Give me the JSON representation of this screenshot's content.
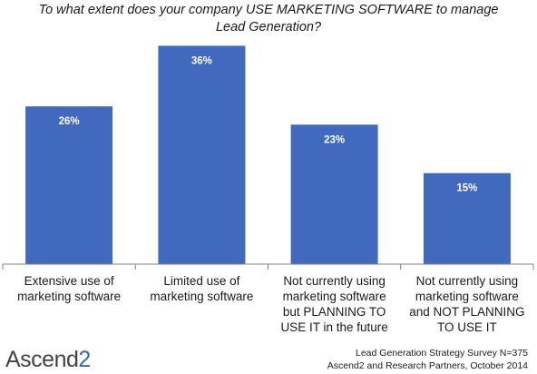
{
  "chart_data": {
    "type": "bar",
    "title_lines": [
      "To what extent does your company USE MARKETING SOFTWARE to manage",
      "Lead Generation?"
    ],
    "categories": [
      [
        "Extensive use of",
        "marketing software"
      ],
      [
        "Limited use of",
        "marketing software"
      ],
      [
        "Not currently using",
        "marketing software",
        "but PLANNING TO",
        "USE IT in the future"
      ],
      [
        "Not currently using",
        "marketing software",
        "and NOT PLANNING",
        "TO USE IT"
      ]
    ],
    "values": [
      26,
      36,
      23,
      15
    ],
    "data_labels": [
      "26%",
      "36%",
      "23%",
      "15%"
    ],
    "ylim": [
      0,
      38
    ],
    "bar_color": "#4169be",
    "axis_color": "#7f7f7f",
    "grid": false,
    "legend": "none"
  },
  "logo": {
    "word": "Ascend",
    "digit": "2"
  },
  "source_lines": [
    "Lead Generation Strategy Survey N=375",
    "Ascend2 and Research Partners, October 2014"
  ]
}
